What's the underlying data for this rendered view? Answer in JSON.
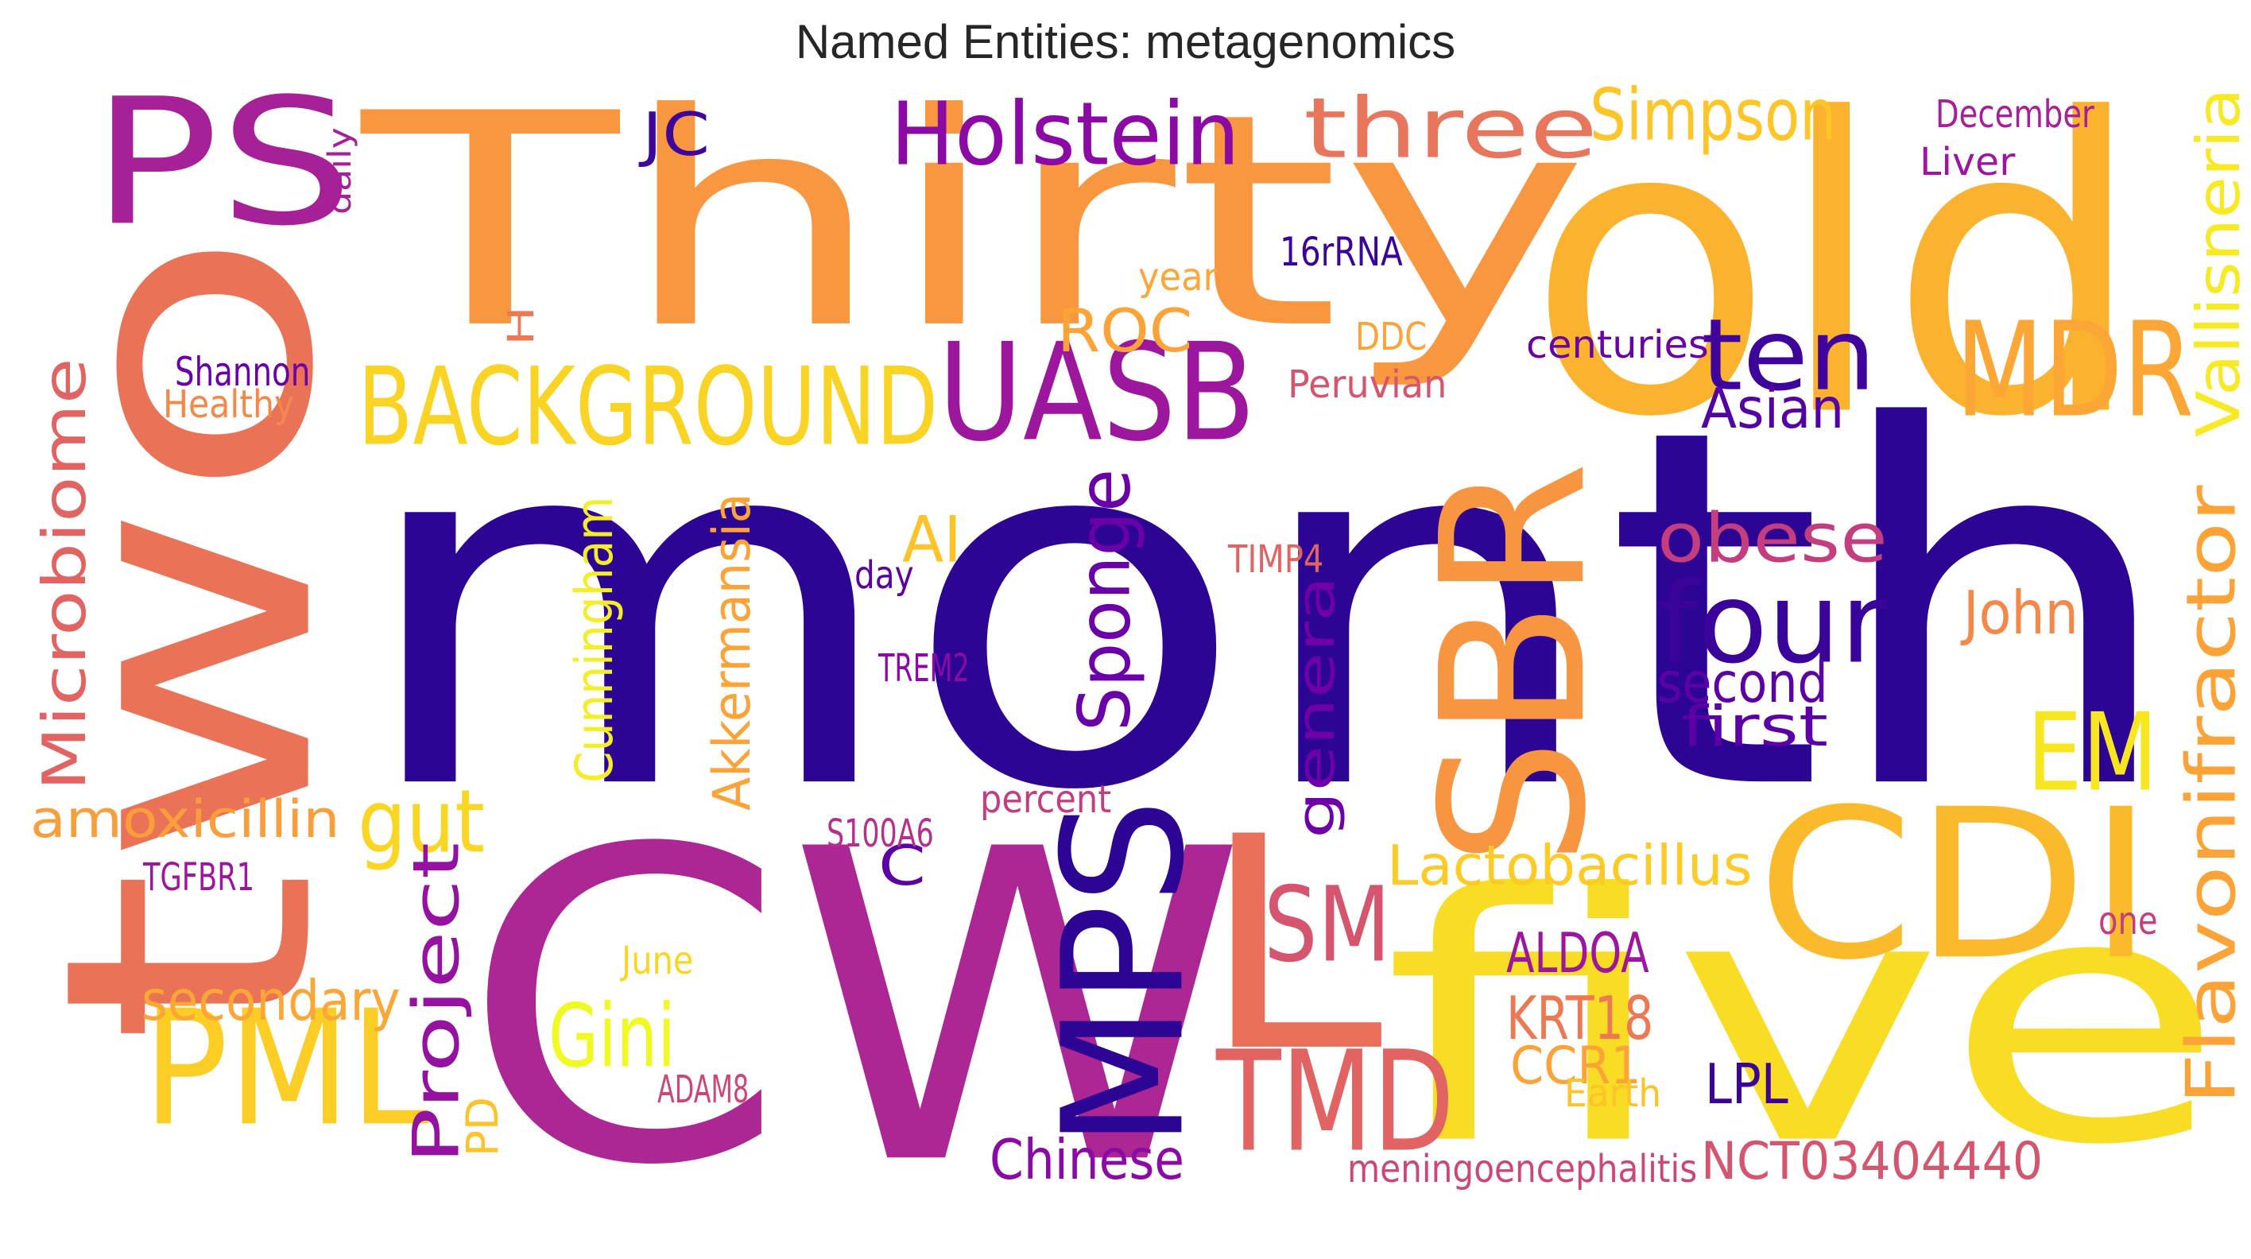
{
  "title": "Named Entities: metagenomics",
  "words": [
    {
      "text": "month",
      "color": "#2c0594"
    },
    {
      "text": "two",
      "color": "#e97257"
    },
    {
      "text": "Thirty",
      "color": "#f8973f"
    },
    {
      "text": "old",
      "color": "#fbb32f"
    },
    {
      "text": "CW",
      "color": "#ac2694"
    },
    {
      "text": "five",
      "color": "#f9dc24"
    },
    {
      "text": "PS",
      "color": "#a62098"
    },
    {
      "text": "CDI",
      "color": "#fbba2c"
    },
    {
      "text": "SBR",
      "color": "#f89540"
    },
    {
      "text": "MPS",
      "color": "#2c0594"
    },
    {
      "text": "L",
      "color": "#ea6f5a"
    },
    {
      "text": "PML",
      "color": "#fccd25"
    },
    {
      "text": "UASB",
      "color": "#9c179e"
    },
    {
      "text": "BACKGROUND",
      "color": "#f9d424"
    },
    {
      "text": "MDR",
      "color": "#fca636"
    },
    {
      "text": "TMD",
      "color": "#e16462"
    },
    {
      "text": "Holstein",
      "color": "#8b0aa5"
    },
    {
      "text": "three",
      "color": "#e8765c"
    },
    {
      "text": "ten",
      "color": "#3e049c"
    },
    {
      "text": "four",
      "color": "#3a049a"
    },
    {
      "text": "EM",
      "color": "#f8e621"
    },
    {
      "text": "SM",
      "color": "#d5546e"
    },
    {
      "text": "Simpson",
      "color": "#fdc527"
    },
    {
      "text": "Flavonifractor",
      "color": "#fca338"
    },
    {
      "text": "Vallisneria",
      "color": "#f8e925"
    },
    {
      "text": "Microbiome",
      "color": "#e16462"
    },
    {
      "text": "Sponge",
      "color": "#6a00a8"
    },
    {
      "text": "genera",
      "color": "#6f00a8"
    },
    {
      "text": "obese",
      "color": "#c43e7f"
    },
    {
      "text": "gut",
      "color": "#fad624"
    },
    {
      "text": "Project",
      "color": "#9512a1"
    },
    {
      "text": "Gini",
      "color": "#f0f921"
    },
    {
      "text": "amoxicillin",
      "color": "#fa9e3b"
    },
    {
      "text": "secondary",
      "color": "#fca636"
    },
    {
      "text": "Lactobacillus",
      "color": "#fdca26"
    },
    {
      "text": "Akkermansia",
      "color": "#fca338"
    },
    {
      "text": "Cunningham",
      "color": "#f3ee27"
    },
    {
      "text": "ROC",
      "color": "#fca338"
    },
    {
      "text": "Asian",
      "color": "#5302a3"
    },
    {
      "text": "second",
      "color": "#5c01a6"
    },
    {
      "text": "first",
      "color": "#5c01a6"
    },
    {
      "text": "John",
      "color": "#f48849"
    },
    {
      "text": "AI",
      "color": "#fdc328"
    },
    {
      "text": "ALDOA",
      "color": "#9c179e"
    },
    {
      "text": "KRT18",
      "color": "#ed7953"
    },
    {
      "text": "CCR1",
      "color": "#fba238"
    },
    {
      "text": "LPL",
      "color": "#3a049a"
    },
    {
      "text": "Chinese",
      "color": "#8b0aa5"
    },
    {
      "text": "NCT03404440",
      "color": "#d5546e"
    },
    {
      "text": "JC",
      "color": "#3e049c"
    },
    {
      "text": "C",
      "color": "#5c01a6"
    },
    {
      "text": "PD",
      "color": "#fdc328"
    },
    {
      "text": "H",
      "color": "#ed7953"
    },
    {
      "text": "Shannon",
      "color": "#6a00a8"
    },
    {
      "text": "Healthy",
      "color": "#f48849"
    },
    {
      "text": "daily",
      "color": "#a62098"
    },
    {
      "text": "16rRNA",
      "color": "#3a049a"
    },
    {
      "text": "year",
      "color": "#fca636"
    },
    {
      "text": "DDC",
      "color": "#fca338"
    },
    {
      "text": "Peruvian",
      "color": "#d5546e"
    },
    {
      "text": "centuries",
      "color": "#6a00a8"
    },
    {
      "text": "December",
      "color": "#a62098"
    },
    {
      "text": "Liver",
      "color": "#9c179e"
    },
    {
      "text": "TIMP4",
      "color": "#e16462"
    },
    {
      "text": "day",
      "color": "#5c01a6"
    },
    {
      "text": "TREM2",
      "color": "#8b0aa5"
    },
    {
      "text": "percent",
      "color": "#c43e7f"
    },
    {
      "text": "S100A6",
      "color": "#b52f8c"
    },
    {
      "text": "TGFBR1",
      "color": "#9c179e"
    },
    {
      "text": "June",
      "color": "#fad624"
    },
    {
      "text": "ADAM8",
      "color": "#cc4778"
    },
    {
      "text": "meningoencephalitis",
      "color": "#cc4778"
    },
    {
      "text": "Earth",
      "color": "#fdc328"
    },
    {
      "text": "one",
      "color": "#c43e7f"
    }
  ]
}
